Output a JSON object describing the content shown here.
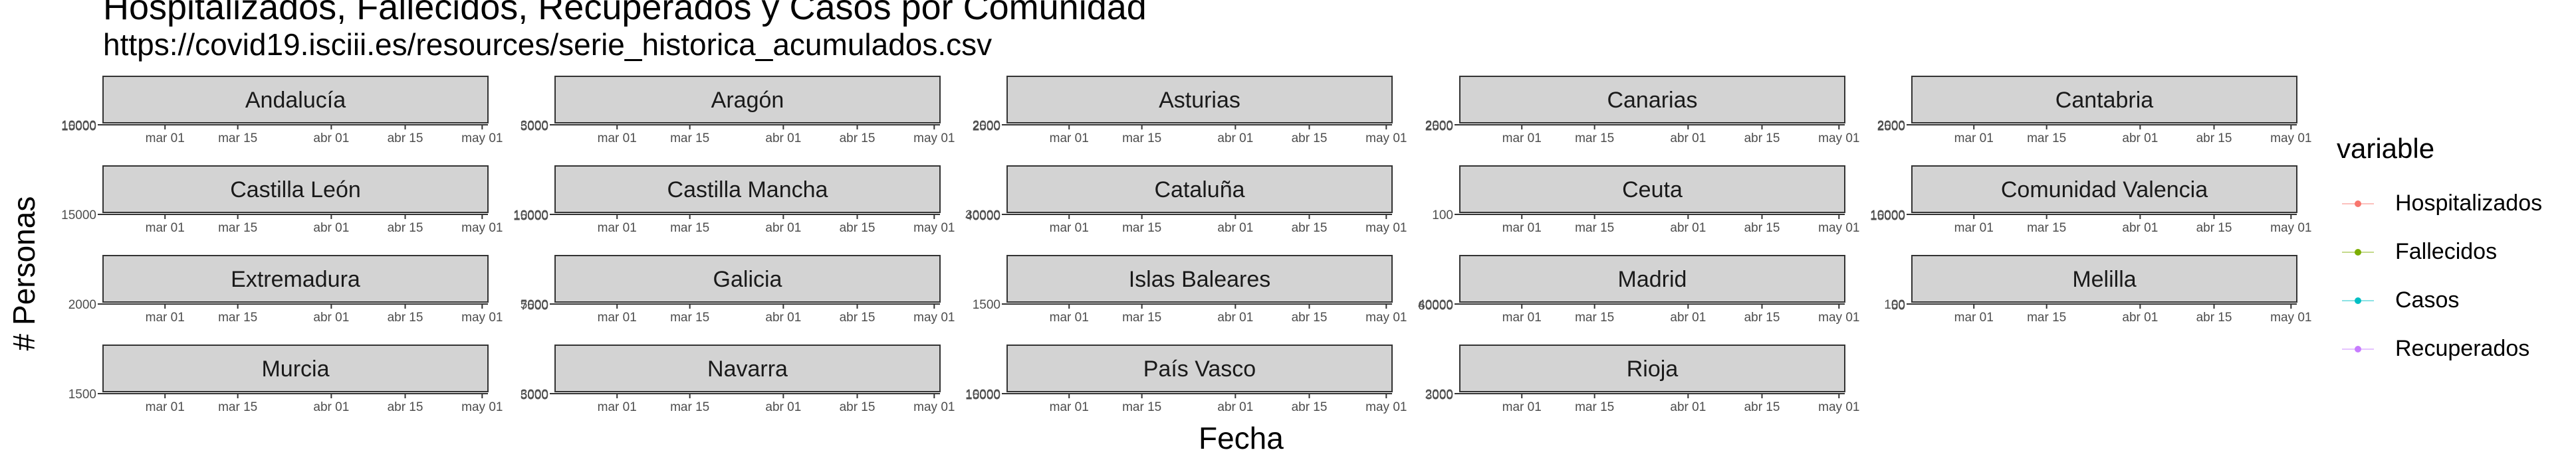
{
  "chart_data": {
    "type": "line",
    "title": "Hospitalizados, Fallecidos, Recuperados y Casos por Comunidad",
    "subtitle": "https://covid19.isciii.es/resources/serie_historica_acumulados.csv",
    "xlabel": "Fecha",
    "ylabel": "# Personas",
    "x_ticks": [
      "mar 01",
      "mar 15",
      "abr 01",
      "abr 15",
      "may 01"
    ],
    "legend": {
      "title": "variable",
      "placement": "right",
      "items": [
        {
          "name": "Hospitalizados",
          "color": "#F8766D"
        },
        {
          "name": "Fallecidos",
          "color": "#7CAE00"
        },
        {
          "name": "Casos",
          "color": "#00BFC4"
        },
        {
          "name": "Recuperados",
          "color": "#C77CFF"
        }
      ]
    },
    "strip_color": "#D3D3D3",
    "panels": [
      {
        "name": "Andalucía",
        "y_ticks": [
          "10000",
          "15000"
        ]
      },
      {
        "name": "Aragón",
        "y_ticks": [
          "3000",
          "5000"
        ]
      },
      {
        "name": "Asturias",
        "y_ticks": [
          "2000",
          "2500"
        ]
      },
      {
        "name": "Canarias",
        "y_ticks": [
          "2000",
          "2500"
        ]
      },
      {
        "name": "Cantabria",
        "y_ticks": [
          "2000",
          "2500"
        ]
      },
      {
        "name": "Castilla León",
        "y_ticks": [
          "15000"
        ]
      },
      {
        "name": "Castilla Mancha",
        "y_ticks": [
          "10000",
          "15000"
        ]
      },
      {
        "name": "Cataluña",
        "y_ticks": [
          "30000",
          "40000"
        ]
      },
      {
        "name": "Ceuta",
        "y_ticks": [
          "100"
        ]
      },
      {
        "name": "Comunidad Valencia",
        "y_ticks": [
          "10000",
          "15000"
        ]
      },
      {
        "name": "Extremadura",
        "y_ticks": [
          "2000"
        ]
      },
      {
        "name": "Galicia",
        "y_ticks": [
          "5000",
          "7500"
        ]
      },
      {
        "name": "Islas Baleares",
        "y_ticks": [
          "1500"
        ]
      },
      {
        "name": "Madrid",
        "y_ticks": [
          "40000",
          "60000"
        ]
      },
      {
        "name": "Melilla",
        "y_ticks": [
          "100",
          "50"
        ]
      },
      {
        "name": "Murcia",
        "y_ticks": [
          "1500"
        ]
      },
      {
        "name": "Navarra",
        "y_ticks": [
          "3000",
          "5000"
        ]
      },
      {
        "name": "País Vasco",
        "y_ticks": [
          "10000",
          "15000"
        ]
      },
      {
        "name": "Rioja",
        "y_ticks": [
          "2000",
          "3000"
        ]
      }
    ]
  }
}
